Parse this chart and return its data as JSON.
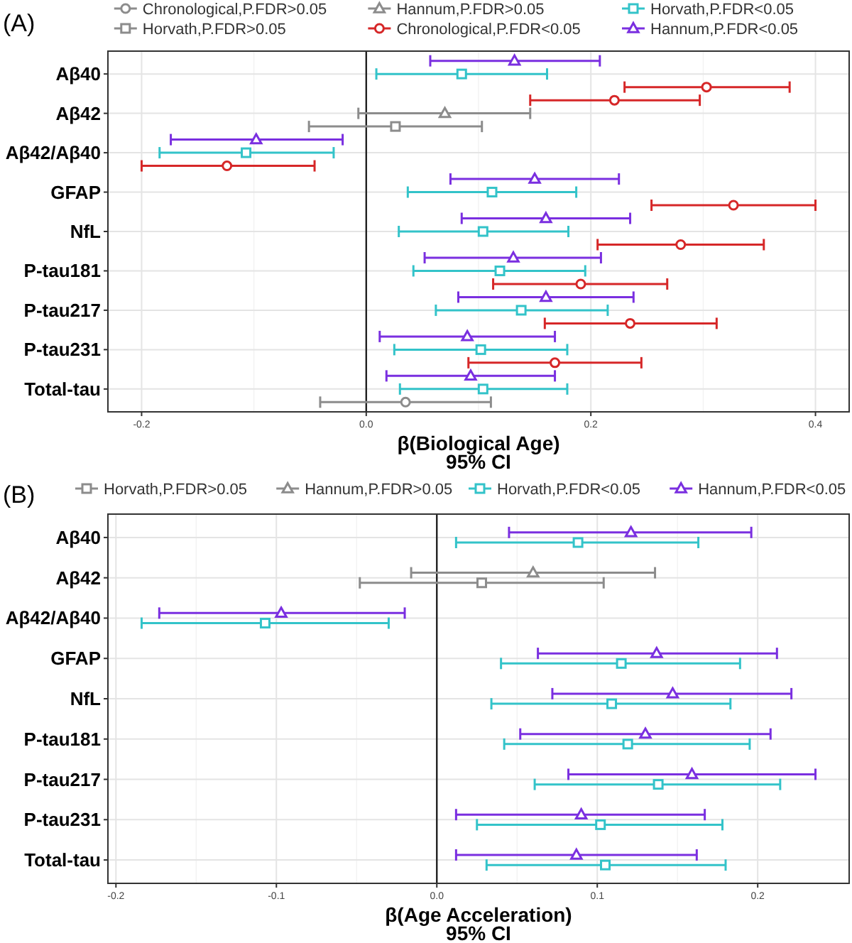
{
  "chart_data": [
    {
      "type": "scatter",
      "title": "(A)",
      "orientation": "horizontal",
      "xlabel": "β(Biological Age)\n95% CI",
      "legend": "top",
      "grid": true,
      "categories": [
        "Aβ40",
        "Aβ42",
        "Aβ42/Aβ40",
        "GFAP",
        "NfL",
        "P-tau181",
        "P-tau217",
        "P-tau231",
        "Total-tau"
      ],
      "xlim": [
        -0.23,
        0.43
      ],
      "xticks": [
        -0.2,
        {
          "value": 0,
          "label": "0.0"
        },
        0.2,
        0.4
      ],
      "ref_lines": [
        {
          "axis": "x",
          "value": 0,
          "color": "#222222"
        }
      ],
      "series": [
        {
          "name": "Chronological,P.FDR>0.05",
          "color": "#8c8c8c",
          "marker": "circle",
          "values": [
            null,
            null,
            null,
            null,
            null,
            null,
            null,
            null,
            0.035
          ],
          "errors": [
            null,
            null,
            null,
            null,
            null,
            null,
            null,
            null,
            [
              -0.041,
              0.111
            ]
          ]
        },
        {
          "name": "Horvath,P.FDR>0.05",
          "color": "#8c8c8c",
          "marker": "square",
          "values": [
            null,
            0.026,
            null,
            null,
            null,
            null,
            null,
            null,
            null
          ],
          "errors": [
            null,
            [
              -0.051,
              0.103
            ],
            null,
            null,
            null,
            null,
            null,
            null,
            null
          ]
        },
        {
          "name": "Hannum,P.FDR>0.05",
          "color": "#8c8c8c",
          "marker": "triangle",
          "values": [
            null,
            0.07,
            null,
            null,
            null,
            null,
            null,
            null,
            null
          ],
          "errors": [
            null,
            [
              -0.007,
              0.146
            ],
            null,
            null,
            null,
            null,
            null,
            null,
            null
          ]
        },
        {
          "name": "Chronological,P.FDR<0.05",
          "color": "#d62728",
          "marker": "circle",
          "values": [
            0.303,
            0.221,
            -0.124,
            0.327,
            0.28,
            0.191,
            0.235,
            0.168,
            null
          ],
          "errors": [
            [
              0.23,
              0.377
            ],
            [
              0.146,
              0.297
            ],
            [
              -0.2,
              -0.046
            ],
            [
              0.254,
              0.4
            ],
            [
              0.206,
              0.354
            ],
            [
              0.113,
              0.268
            ],
            [
              0.159,
              0.312
            ],
            [
              0.091,
              0.245
            ],
            null
          ]
        },
        {
          "name": "Horvath,P.FDR<0.05",
          "color": "#33c3c9",
          "marker": "square",
          "values": [
            0.085,
            null,
            -0.107,
            0.112,
            0.104,
            0.119,
            0.138,
            0.102,
            0.104
          ],
          "errors": [
            [
              0.009,
              0.161
            ],
            null,
            [
              -0.184,
              -0.029
            ],
            [
              0.037,
              0.187
            ],
            [
              0.029,
              0.18
            ],
            [
              0.042,
              0.195
            ],
            [
              0.062,
              0.215
            ],
            [
              0.025,
              0.179
            ],
            [
              0.03,
              0.179
            ]
          ]
        },
        {
          "name": "Hannum,P.FDR<0.05",
          "color": "#7a2fe0",
          "marker": "triangle",
          "values": [
            0.132,
            null,
            -0.098,
            0.15,
            0.16,
            0.131,
            0.16,
            0.09,
            0.093
          ],
          "errors": [
            [
              0.057,
              0.208
            ],
            null,
            [
              -0.174,
              -0.021
            ],
            [
              0.075,
              0.225
            ],
            [
              0.085,
              0.235
            ],
            [
              0.052,
              0.209
            ],
            [
              0.082,
              0.238
            ],
            [
              0.012,
              0.168
            ],
            [
              0.018,
              0.168
            ]
          ]
        }
      ]
    },
    {
      "type": "scatter",
      "title": "(B)",
      "orientation": "horizontal",
      "xlabel": "β(Age Acceleration)\n95% CI",
      "legend": "top",
      "grid": true,
      "categories": [
        "Aβ40",
        "Aβ42",
        "Aβ42/Aβ40",
        "GFAP",
        "NfL",
        "P-tau181",
        "P-tau217",
        "P-tau231",
        "Total-tau"
      ],
      "xlim": [
        -0.205,
        0.257
      ],
      "xticks": [
        -0.2,
        -0.1,
        {
          "value": 0,
          "label": "0.0"
        },
        0.1,
        0.2
      ],
      "ref_lines": [
        {
          "axis": "x",
          "value": 0,
          "color": "#222222"
        }
      ],
      "series": [
        {
          "name": "Horvath,P.FDR>0.05",
          "color": "#8c8c8c",
          "marker": "square",
          "values": [
            null,
            0.028,
            null,
            null,
            null,
            null,
            null,
            null,
            null
          ],
          "errors": [
            null,
            [
              -0.048,
              0.104
            ],
            null,
            null,
            null,
            null,
            null,
            null,
            null
          ]
        },
        {
          "name": "Hannum,P.FDR>0.05",
          "color": "#8c8c8c",
          "marker": "triangle",
          "values": [
            null,
            0.06,
            null,
            null,
            null,
            null,
            null,
            null,
            null
          ],
          "errors": [
            null,
            [
              -0.016,
              0.136
            ],
            null,
            null,
            null,
            null,
            null,
            null,
            null
          ]
        },
        {
          "name": "Horvath,P.FDR<0.05",
          "color": "#33c3c9",
          "marker": "square",
          "values": [
            0.088,
            null,
            -0.107,
            0.115,
            0.109,
            0.119,
            0.138,
            0.102,
            0.105
          ],
          "errors": [
            [
              0.012,
              0.163
            ],
            null,
            [
              -0.184,
              -0.03
            ],
            [
              0.04,
              0.189
            ],
            [
              0.034,
              0.183
            ],
            [
              0.042,
              0.195
            ],
            [
              0.061,
              0.214
            ],
            [
              0.025,
              0.178
            ],
            [
              0.031,
              0.18
            ]
          ]
        },
        {
          "name": "Hannum,P.FDR<0.05",
          "color": "#7a2fe0",
          "marker": "triangle",
          "values": [
            0.121,
            null,
            -0.097,
            0.137,
            0.147,
            0.13,
            0.159,
            0.09,
            0.087
          ],
          "errors": [
            [
              0.045,
              0.196
            ],
            null,
            [
              -0.173,
              -0.02
            ],
            [
              0.063,
              0.212
            ],
            [
              0.072,
              0.221
            ],
            [
              0.052,
              0.208
            ],
            [
              0.082,
              0.236
            ],
            [
              0.012,
              0.167
            ],
            [
              0.012,
              0.162
            ]
          ]
        }
      ]
    }
  ]
}
